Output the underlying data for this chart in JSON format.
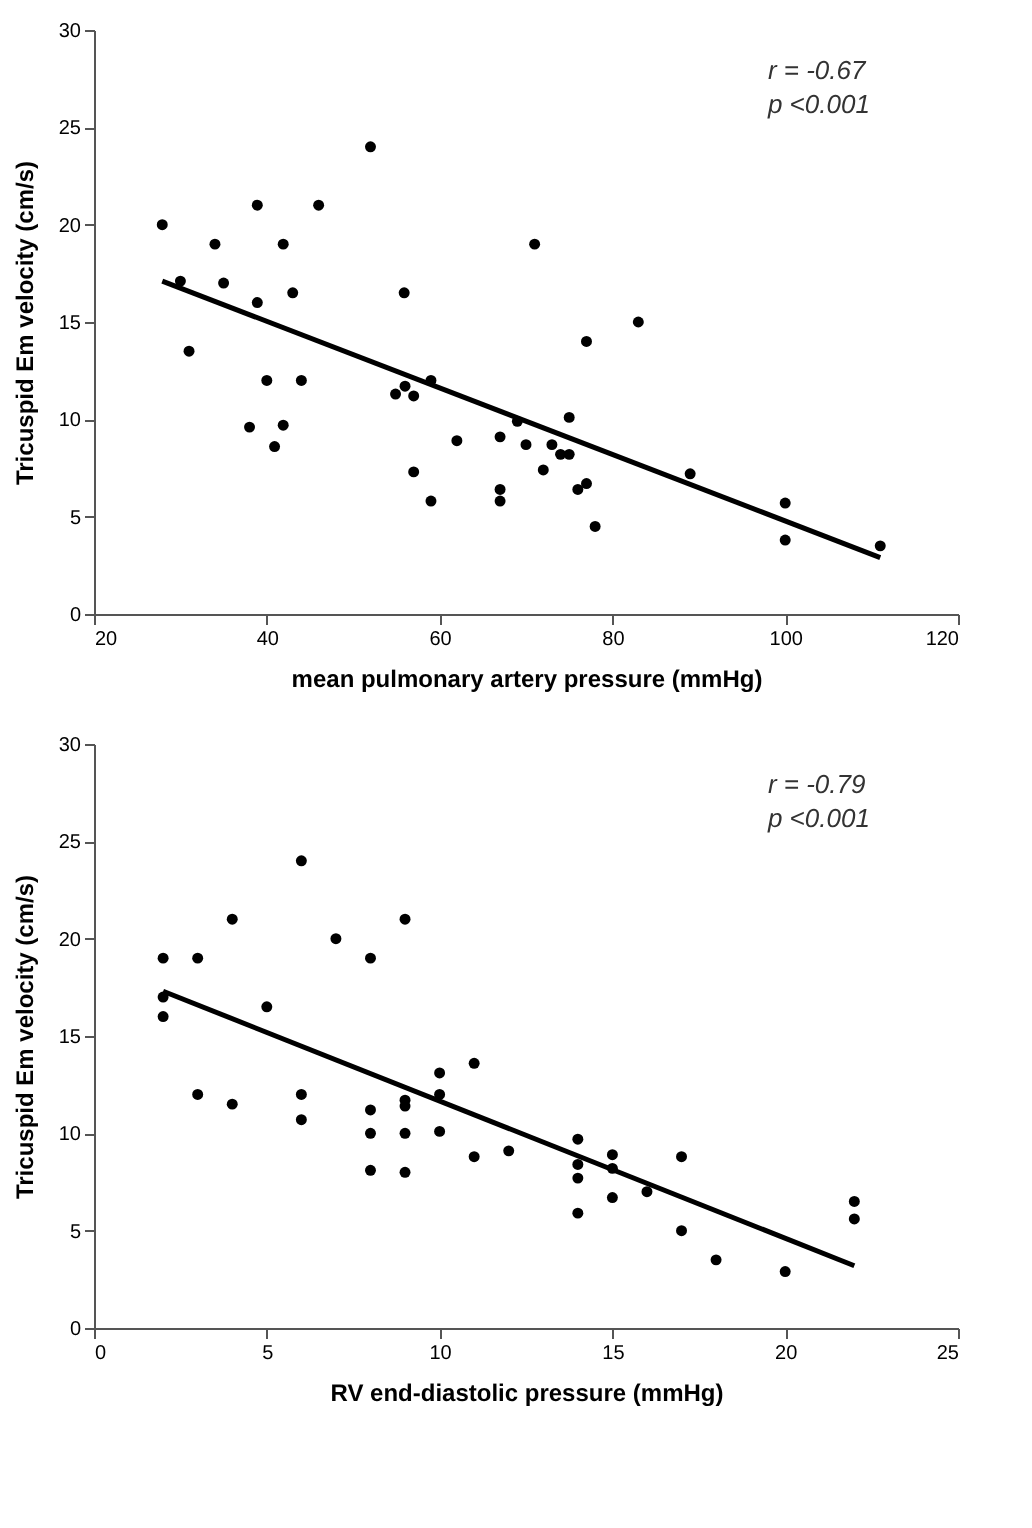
{
  "chart_data": [
    {
      "type": "scatter",
      "xlabel": "mean pulmonary artery pressure (mmHg)",
      "ylabel": "Tricuspid Em velocity (cm/s)",
      "xlim": [
        20,
        120
      ],
      "xticks": [
        20,
        40,
        60,
        80,
        100,
        120
      ],
      "ylim": [
        0,
        30
      ],
      "yticks": [
        0,
        5,
        10,
        15,
        20,
        25,
        30
      ],
      "grid": false,
      "legend": false,
      "marker": "circle",
      "annotations": [
        "r = -0.67",
        "p <0.001"
      ],
      "series": [
        {
          "color": "#000000",
          "x": [
            27.9,
            30,
            31,
            34,
            35,
            38,
            38.9,
            38.9,
            40,
            40.9,
            41.9,
            41.9,
            43,
            44,
            46,
            52,
            54.9,
            55.9,
            56,
            57,
            57,
            59,
            59,
            62,
            67,
            67,
            67,
            69,
            70,
            71,
            72,
            73,
            74,
            75,
            75,
            76,
            77,
            77,
            78,
            83,
            89,
            100,
            100,
            111
          ],
          "values": [
            20,
            17.1,
            13.5,
            19,
            17,
            9.6,
            21,
            16,
            12,
            8.6,
            19,
            9.7,
            16.5,
            12,
            21,
            24,
            11.3,
            16.5,
            11.7,
            11.2,
            7.3,
            12,
            5.8,
            8.9,
            9.1,
            6.4,
            5.8,
            9.9,
            8.7,
            19,
            7.4,
            8.7,
            8.2,
            8.2,
            10.1,
            6.4,
            6.7,
            14,
            4.5,
            15,
            7.2,
            5.7,
            3.8,
            3.5
          ]
        },
        {
          "type": "line",
          "color": "#000000",
          "marker": "none",
          "line_style": "solid",
          "x": [
            27.9,
            111
          ],
          "values": [
            17.1,
            2.9
          ]
        }
      ]
    },
    {
      "type": "scatter",
      "xlabel": "RV end-diastolic pressure (mmHg)",
      "ylabel": "Tricuspid Em velocity (cm/s)",
      "xlim": [
        0,
        25
      ],
      "xticks": [
        0,
        5,
        10,
        15,
        20,
        25
      ],
      "ylim": [
        0,
        30
      ],
      "yticks": [
        0,
        5,
        10,
        15,
        20,
        25,
        30
      ],
      "grid": false,
      "legend": false,
      "marker": "circle",
      "annotations": [
        "r = -0.79",
        "p <0.001"
      ],
      "series": [
        {
          "color": "#000000",
          "x": [
            2,
            2,
            2,
            3,
            3,
            4,
            4,
            5,
            6,
            6,
            6,
            7,
            8,
            8,
            8,
            8,
            9,
            9,
            9,
            9,
            9,
            10,
            10,
            10,
            11,
            11,
            12,
            14,
            14,
            14,
            14,
            15,
            15,
            15,
            16,
            17,
            17,
            18,
            20,
            22,
            22
          ],
          "values": [
            19,
            17,
            16,
            19,
            12,
            21,
            11.5,
            16.5,
            24,
            12,
            10.7,
            20,
            19,
            11.2,
            10,
            8.1,
            21,
            11.7,
            11.4,
            10,
            8,
            13.1,
            12,
            10.1,
            13.6,
            8.8,
            9.1,
            9.7,
            8.4,
            7.7,
            5.9,
            8.9,
            8.2,
            6.7,
            7,
            8.8,
            5,
            3.5,
            2.9,
            6.5,
            5.6
          ]
        },
        {
          "type": "line",
          "color": "#000000",
          "marker": "none",
          "line_style": "solid",
          "x": [
            2,
            22
          ],
          "values": [
            17.3,
            3.2
          ]
        }
      ]
    }
  ]
}
